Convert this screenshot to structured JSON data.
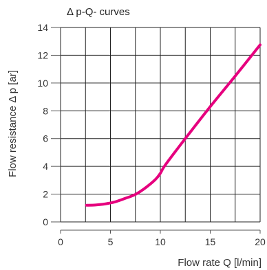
{
  "chart_data": {
    "type": "line",
    "title": "Δ p-Q- curves",
    "xlabel": "Flow rate Q [l/min]",
    "ylabel": "Flow resistance Δ p [ar]",
    "xlim": [
      0,
      20
    ],
    "ylim": [
      0,
      14
    ],
    "xticks": [
      0,
      5,
      10,
      15,
      20
    ],
    "yticks": [
      0,
      2,
      4,
      6,
      8,
      10,
      12,
      14
    ],
    "xgrid_step": 2.5,
    "grid": true,
    "series": [
      {
        "color": "#e6007e",
        "x": [
          2.6,
          3.5,
          4.5,
          5.5,
          6.5,
          7.5,
          8.5,
          9.5,
          10.0,
          10.5,
          12.5,
          15.0,
          17.5,
          20.0
        ],
        "y": [
          1.2,
          1.22,
          1.3,
          1.45,
          1.7,
          1.98,
          2.45,
          3.05,
          3.5,
          4.1,
          6.0,
          8.3,
          10.5,
          12.75
        ]
      }
    ]
  }
}
